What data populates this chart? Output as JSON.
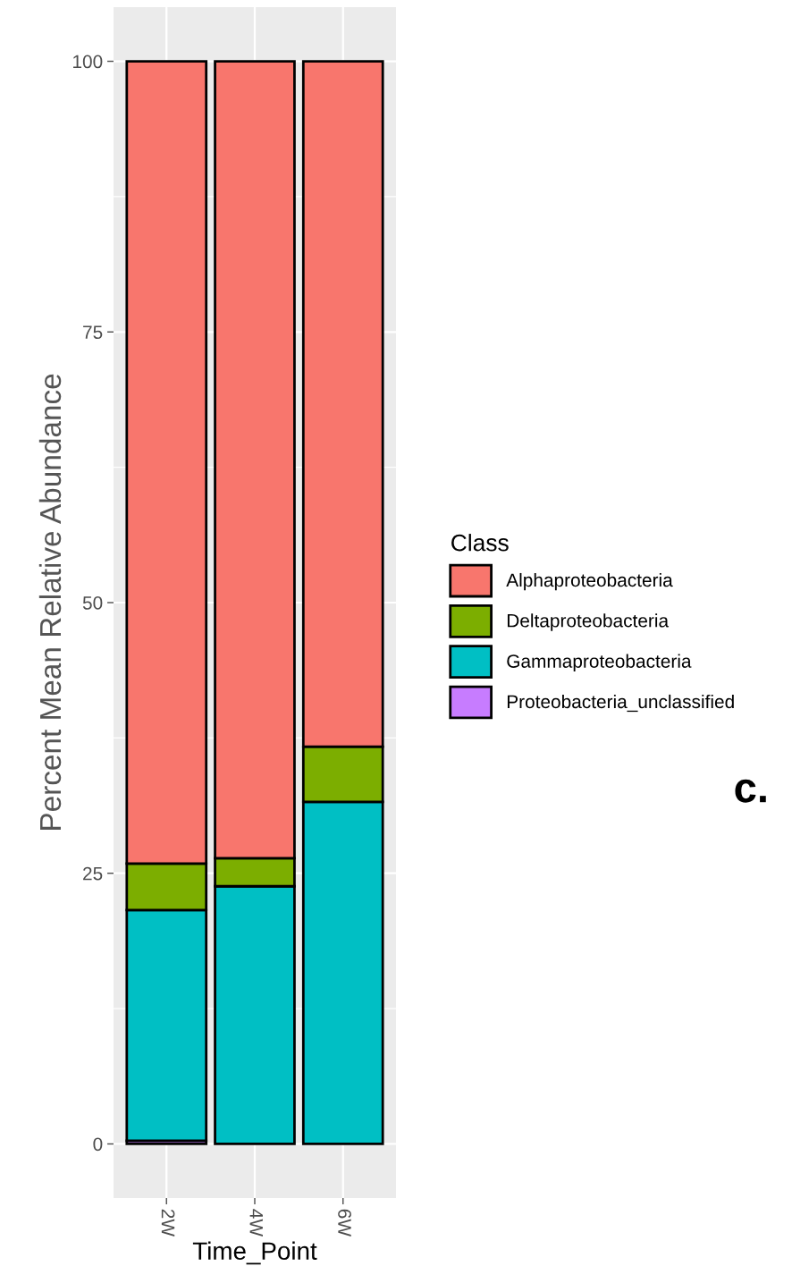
{
  "chart_data": {
    "type": "bar",
    "stacked": true,
    "xlabel": "Time_Point",
    "ylabel": "Percent Mean Relative Abundance",
    "legend_title": "Class",
    "categories": [
      "2W",
      "4W",
      "6W"
    ],
    "series": [
      {
        "name": "Proteobacteria_unclassified",
        "color": "#c77cff",
        "values": [
          0.3,
          null,
          null
        ]
      },
      {
        "name": "Gammaproteobacteria",
        "color": "#00bfc4",
        "values": [
          21.3,
          23.8,
          31.6
        ]
      },
      {
        "name": "Deltaproteobacteria",
        "color": "#7cae00",
        "values": [
          4.3,
          2.6,
          5.1
        ]
      },
      {
        "name": "Alphaproteobacteria",
        "color": "#f8766d",
        "values": [
          74.1,
          73.6,
          63.3
        ]
      }
    ],
    "ylim": [
      -5,
      105
    ],
    "yticks": [
      0,
      25,
      50,
      75,
      100
    ],
    "grid": true,
    "legend": "right",
    "annotations": [
      "c."
    ]
  }
}
